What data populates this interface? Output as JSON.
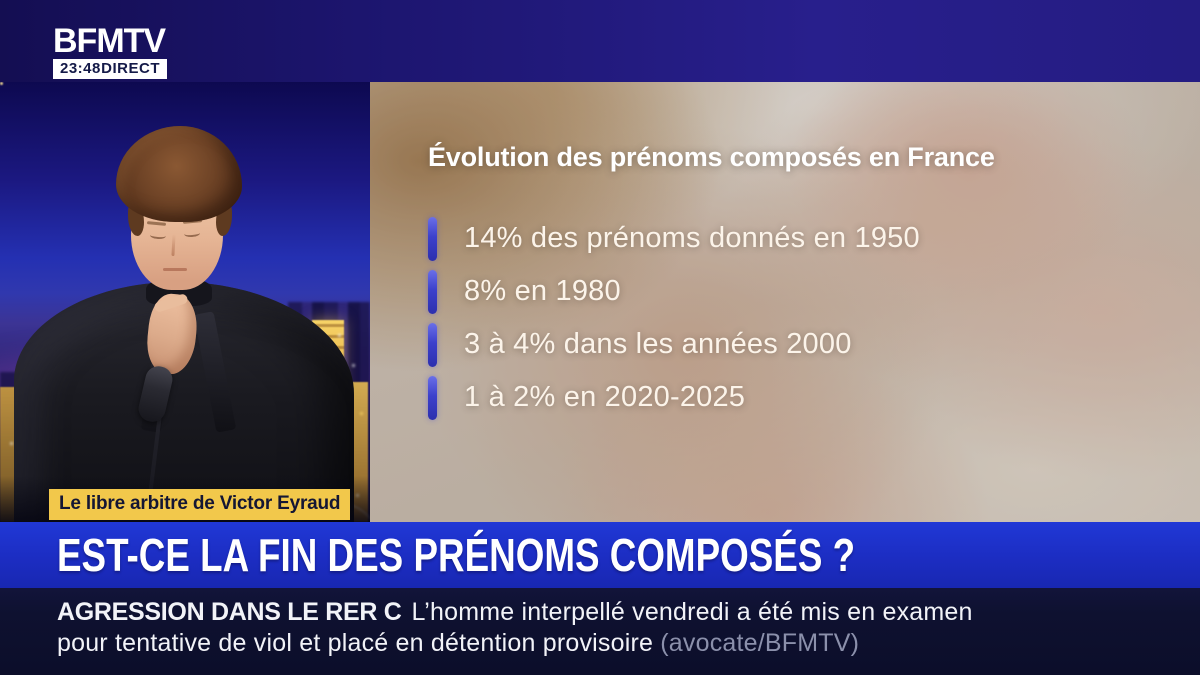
{
  "channel": {
    "logo": "BFMTV",
    "time": "23:48",
    "live_label": "DIRECT"
  },
  "program_badge": {
    "label": "Le libre arbitre de Victor Eyraud"
  },
  "infographic": {
    "title": "Évolution des prénoms composés en France",
    "items": [
      "14% des prénoms donnés en 1950",
      "8% en 1980",
      "3 à 4% dans les années 2000",
      "1 à 2% en 2020-2025"
    ]
  },
  "chart_data": {
    "type": "table",
    "title": "Évolution des prénoms composés en France",
    "categories": [
      "1950",
      "1980",
      "années 2000",
      "2020-2025"
    ],
    "values_text": [
      "14%",
      "8%",
      "3 à 4%",
      "1 à 2%"
    ],
    "values_numeric": [
      14,
      8,
      3.5,
      1.5
    ],
    "unit": "% des prénoms donnés"
  },
  "headline": {
    "text": "EST-CE LA FIN DES PRÉNOMS COMPOSÉS ?"
  },
  "ticker": {
    "topic": "AGRESSION DANS LE RER C",
    "text_line1": "L’homme interpellé vendredi a été mis en examen",
    "text_line2": "pour tentative de viol et placé en détention provisoire",
    "credit": "(avocate/BFMTV)"
  },
  "colors": {
    "banner_blue": "#1c2dc2",
    "ticker_navy": "#0e1130",
    "topbar_navy": "#1c156e",
    "badge_yellow": "#f2c84b",
    "bullet_blue": "#3c40cc"
  }
}
